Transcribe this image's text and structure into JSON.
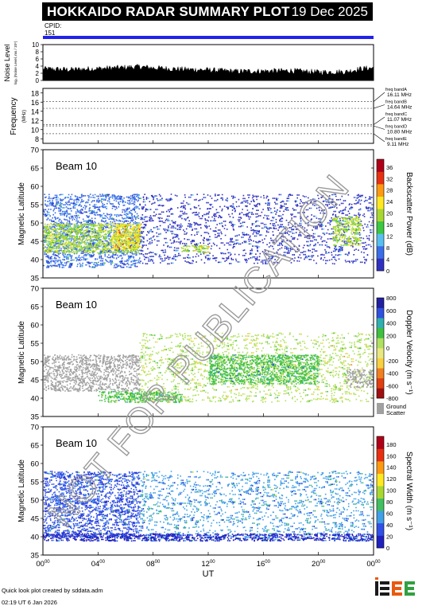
{
  "header": {
    "title": "HOKKAIDO RADAR SUMMARY PLOT",
    "date": "19 Dec 2025"
  },
  "cpid": {
    "label": "CPID:",
    "value": "151"
  },
  "noise": {
    "ylabel": "Noise Level",
    "ylabel_sub": "log₀ (Noise Level, ms / 10⁶)",
    "ticks": [
      "0",
      "2",
      "4",
      "6",
      "8",
      "10"
    ]
  },
  "frequency": {
    "ylabel": "Frequency",
    "unit": "(MHz)",
    "ticks": [
      "8",
      "10",
      "12",
      "14",
      "16",
      "18"
    ],
    "bands": [
      {
        "label": "freq bandA",
        "value": "16.11 MHz"
      },
      {
        "label": "freq bandB",
        "value": "14.64 MHz"
      },
      {
        "label": "freq bandC",
        "value": "11.07 MHz"
      },
      {
        "label": "freq bandD",
        "value": "10.80 MHz"
      },
      {
        "label": "freq bandE",
        "value": "9.11 MHz"
      }
    ]
  },
  "panels": [
    {
      "beam_label": "Beam 10",
      "ylabel": "Magnetic Latitude",
      "colorbar_label": "Backscatter Power (dB)",
      "colorbar_ticks": [
        "0",
        "4",
        "8",
        "12",
        "16",
        "20",
        "24",
        "28",
        "32",
        "36"
      ]
    },
    {
      "beam_label": "Beam 10",
      "ylabel": "Magnetic Latitude",
      "colorbar_label": "Doppler Velocity (m s⁻¹)",
      "colorbar_ticks": [
        "-800",
        "-600",
        "-400",
        "-200",
        "0",
        "200",
        "400",
        "600",
        "800"
      ],
      "ground_scatter_label": [
        "Ground",
        "Scatter"
      ]
    },
    {
      "beam_label": "Beam 10",
      "ylabel": "Magnetic Latitude",
      "colorbar_label": "Spectral Width (m s⁻¹)",
      "colorbar_ticks": [
        "0",
        "20",
        "40",
        "60",
        "80",
        "100",
        "120",
        "140",
        "160",
        "180"
      ]
    }
  ],
  "lat_ticks": [
    "35",
    "40",
    "45",
    "50",
    "55",
    "60",
    "65",
    "70"
  ],
  "x_axis": {
    "label": "UT",
    "ticks": [
      {
        "h": "00",
        "m": "00"
      },
      {
        "h": "04",
        "m": "00"
      },
      {
        "h": "08",
        "m": "00"
      },
      {
        "h": "12",
        "m": "00"
      },
      {
        "h": "16",
        "m": "00"
      },
      {
        "h": "20",
        "m": "00"
      },
      {
        "h": "00",
        "m": "00"
      }
    ]
  },
  "watermark": "NOT FOR PUBLICATION",
  "footer": {
    "credit": "Quick look plot created by sddata.adm",
    "time": "02:19 UT  6 Jan 2026"
  },
  "logo_text": "ISEE",
  "colors": {
    "cpid_bar": "#2222ee",
    "power_scale": [
      "#ffffff",
      "#3030c0",
      "#3a6ee8",
      "#58c0f0",
      "#3cc840",
      "#a8d830",
      "#ffe820",
      "#ff9a10",
      "#e83010",
      "#b00018"
    ],
    "velocity_scale": [
      "#a01010",
      "#e04010",
      "#f08020",
      "#f8d040",
      "#e8e880",
      "#b0e060",
      "#40c040",
      "#30b0b0",
      "#3050e0",
      "#2020a0"
    ],
    "ground_scatter": "#a0a0a0"
  },
  "chart_data": [
    {
      "type": "line",
      "title": "Noise Level",
      "ylabel": "Noise Level",
      "xlabel": "UT",
      "xlim": [
        0,
        24
      ],
      "ylim": [
        0,
        10
      ],
      "x": [
        0,
        2,
        4,
        6,
        7,
        8,
        10,
        12,
        14,
        16,
        18,
        20,
        22,
        23,
        24
      ],
      "y": [
        3.2,
        3.0,
        3.3,
        3.6,
        3.8,
        3.5,
        3.1,
        2.9,
        2.5,
        2.6,
        2.7,
        2.3,
        2.4,
        3.2,
        3.5
      ]
    },
    {
      "type": "line",
      "title": "Frequency",
      "ylabel": "Frequency",
      "xlabel": "UT",
      "xlim": [
        0,
        24
      ],
      "ylim": [
        7,
        19
      ],
      "series": [
        {
          "name": "freq bandA",
          "x": [
            0,
            24
          ],
          "values": [
            16.11,
            16.11
          ]
        },
        {
          "name": "freq bandB",
          "x": [
            0,
            24
          ],
          "values": [
            14.64,
            14.64
          ]
        },
        {
          "name": "freq bandC",
          "x": [
            0,
            24
          ],
          "values": [
            11.07,
            11.07
          ]
        },
        {
          "name": "freq bandD",
          "x": [
            0,
            24
          ],
          "values": [
            10.8,
            10.8
          ]
        },
        {
          "name": "freq bandE",
          "x": [
            0,
            24
          ],
          "values": [
            9.11,
            9.11
          ]
        }
      ]
    },
    {
      "type": "heatmap",
      "title": "Beam 10",
      "ylabel": "Magnetic Latitude",
      "xlabel": "UT",
      "xlim": [
        0,
        24
      ],
      "ylim": [
        35,
        70
      ],
      "colorbar": "Backscatter Power (dB)",
      "clim": [
        0,
        36
      ],
      "series": [
        {
          "type": "region",
          "x": [
            0,
            7
          ],
          "lat": [
            38,
            58
          ],
          "level": 4
        },
        {
          "type": "region",
          "x": [
            0,
            7
          ],
          "lat": [
            42,
            50
          ],
          "level": 16
        },
        {
          "type": "region",
          "x": [
            5,
            7
          ],
          "lat": [
            43,
            50
          ],
          "level": 24
        },
        {
          "type": "region",
          "x": [
            7,
            24
          ],
          "lat": [
            39,
            58
          ],
          "level": 2
        },
        {
          "type": "region",
          "x": [
            10,
            12
          ],
          "lat": [
            42,
            44
          ],
          "level": 20
        },
        {
          "type": "region",
          "x": [
            21,
            23
          ],
          "lat": [
            44,
            52
          ],
          "level": 16
        }
      ]
    },
    {
      "type": "heatmap",
      "title": "Beam 10",
      "ylabel": "Magnetic Latitude",
      "xlabel": "UT",
      "xlim": [
        0,
        24
      ],
      "ylim": [
        35,
        70
      ],
      "colorbar": "Doppler Velocity (m s⁻¹)",
      "clim": [
        -800,
        800
      ],
      "series": [
        {
          "type": "ground_scatter",
          "x": [
            0,
            7
          ],
          "lat": [
            42,
            52
          ]
        },
        {
          "type": "region",
          "x": [
            7,
            24
          ],
          "lat": [
            39,
            58
          ],
          "level": 0
        },
        {
          "type": "region",
          "x": [
            12,
            20
          ],
          "lat": [
            44,
            52
          ],
          "level": 200
        },
        {
          "type": "region",
          "x": [
            4,
            10
          ],
          "lat": [
            39,
            42
          ],
          "level": 200
        },
        {
          "type": "ground_scatter",
          "x": [
            22,
            24
          ],
          "lat": [
            43,
            48
          ]
        }
      ]
    },
    {
      "type": "heatmap",
      "title": "Beam 10",
      "ylabel": "Magnetic Latitude",
      "xlabel": "UT",
      "xlim": [
        0,
        24
      ],
      "ylim": [
        35,
        70
      ],
      "colorbar": "Spectral Width (m s⁻¹)",
      "clim": [
        0,
        180
      ],
      "series": [
        {
          "type": "region",
          "x": [
            0,
            7
          ],
          "lat": [
            40,
            58
          ],
          "level": 20
        },
        {
          "type": "region",
          "x": [
            7,
            24
          ],
          "lat": [
            39,
            58
          ],
          "level": 40
        },
        {
          "type": "region",
          "x": [
            0,
            24
          ],
          "lat": [
            39,
            41
          ],
          "level": 10
        }
      ]
    }
  ]
}
